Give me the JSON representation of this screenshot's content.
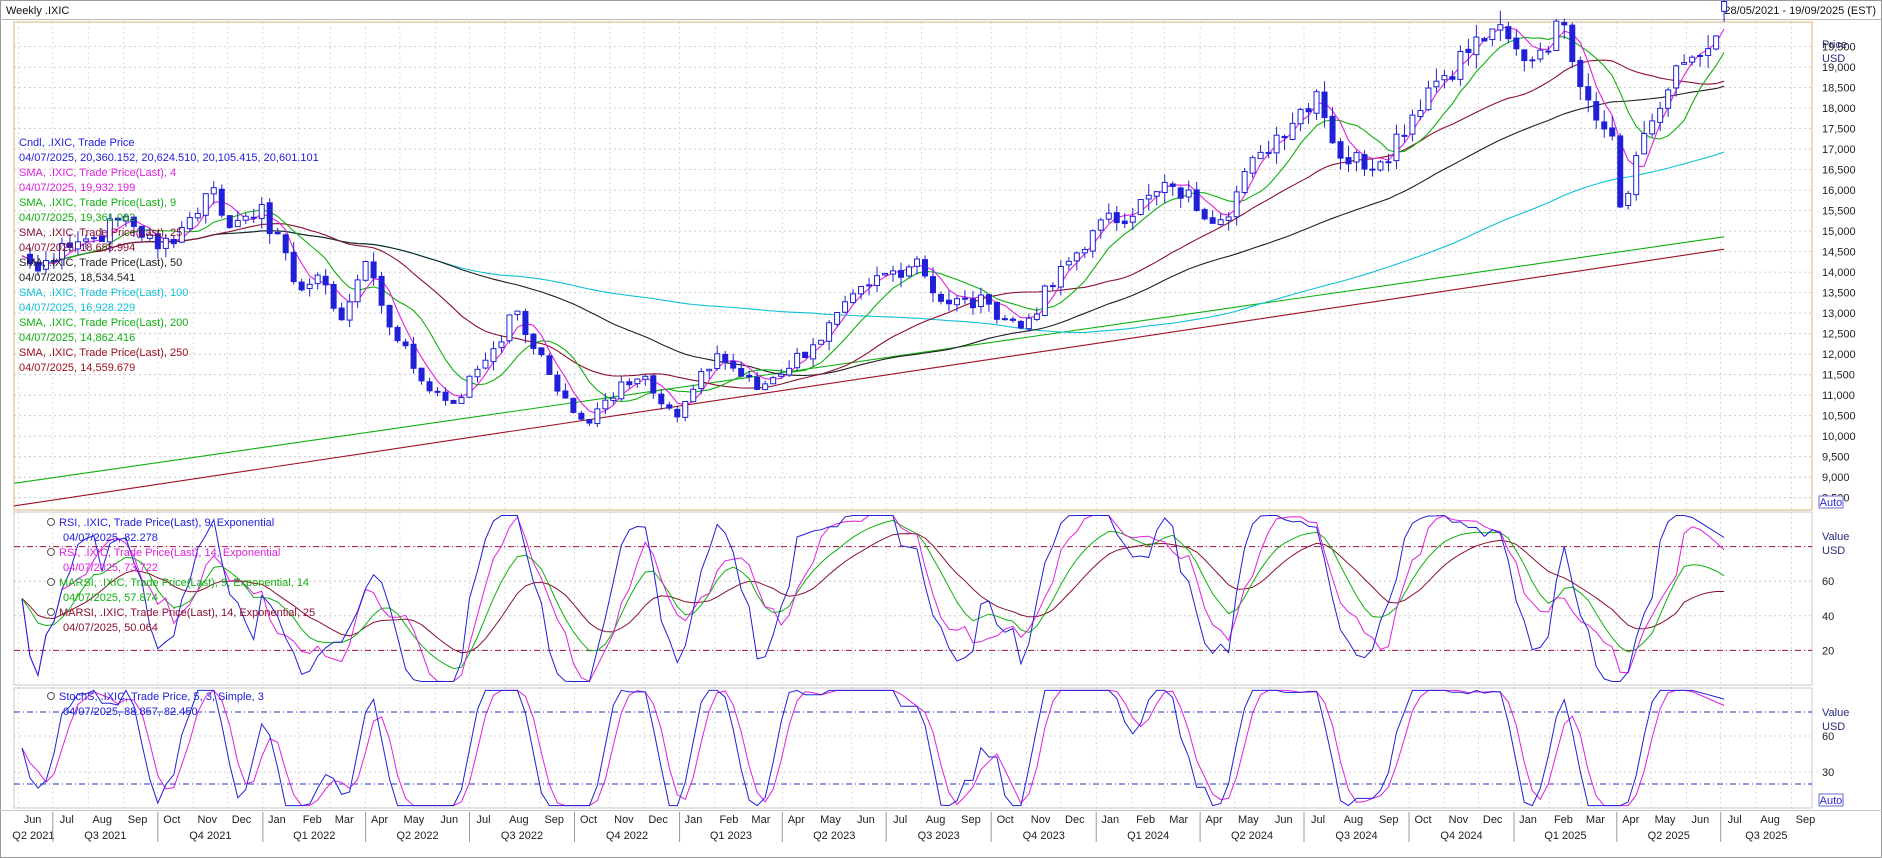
{
  "header": {
    "title": "Weekly .IXIC",
    "date_range": "28/05/2021 - 19/09/2025 (EST)"
  },
  "colors": {
    "candle": "#2020d8",
    "sma4": "#e020e0",
    "sma9": "#10b010",
    "sma25": "#8b1030",
    "sma50": "#202020",
    "sma100": "#10c0d8",
    "sma200": "#10b010",
    "sma250": "#a01020",
    "rsi9": "#2020d8",
    "rsi14": "#e020e0",
    "marsi9": "#10b010",
    "marsi14": "#8b1030",
    "stoch_k": "#2020d8",
    "stoch_d": "#e020e0"
  },
  "price_legend": [
    {
      "name": "Cndl, .IXIC, Trade Price",
      "value": "04/07/2025, 20,360.152, 20,624.510, 20,105.415, 20,601.101",
      "color": "#2020d8"
    },
    {
      "name": "SMA, .IXIC, Trade Price(Last), 4",
      "value": "04/07/2025, 19,932.199",
      "color": "#e020e0"
    },
    {
      "name": "SMA, .IXIC, Trade Price(Last), 9",
      "value": "04/07/2025, 19,361.082",
      "color": "#10b010"
    },
    {
      "name": "SMA, .IXIC, Trade Price(Last), 25",
      "value": "04/07/2025, 18,655.994",
      "color": "#8b1030"
    },
    {
      "name": "SMA, .IXIC, Trade Price(Last), 50",
      "value": "04/07/2025, 18,534.541",
      "color": "#202020"
    },
    {
      "name": "SMA, .IXIC, Trade Price(Last), 100",
      "value": "04/07/2025, 16,928.229",
      "color": "#10c0d8"
    },
    {
      "name": "SMA, .IXIC, Trade Price(Last), 200",
      "value": "04/07/2025, 14,862.416",
      "color": "#10b010"
    },
    {
      "name": "SMA, .IXIC, Trade Price(Last), 250",
      "value": "04/07/2025, 14,559.679",
      "color": "#a01020"
    }
  ],
  "rsi_legend": [
    {
      "name": "RSI, .IXIC, Trade Price(Last), 9, Exponential",
      "value": "04/07/2025, 82.278",
      "color": "#2020d8"
    },
    {
      "name": "RSI, .IXIC, Trade Price(Last), 14, Exponential",
      "value": "04/07/2025, 73.722",
      "color": "#e020e0"
    },
    {
      "name": "MARSI, .IXIC, Trade Price(Last), 9, Exponential, 14",
      "value": "04/07/2025, 57.874",
      "color": "#10b010"
    },
    {
      "name": "MARSI, .IXIC, Trade Price(Last), 14, Exponential, 25",
      "value": "04/07/2025, 50.064",
      "color": "#8b1030"
    }
  ],
  "stoch_legend": [
    {
      "name": "StochS, .IXIC, Trade Price, 5, 3, Simple, 3",
      "value": "04/07/2025, 88.857, 82.450",
      "color": "#2020d8"
    }
  ],
  "axes": {
    "price_unit_top": "Price",
    "price_unit": "USD",
    "price_ticks": [
      "19,500",
      "19,000",
      "18,500",
      "18,000",
      "17,500",
      "17,000",
      "16,500",
      "16,000",
      "15,500",
      "15,000",
      "14,500",
      "14,000",
      "13,500",
      "13,000",
      "12,500",
      "12,000",
      "11,500",
      "11,000",
      "10,500",
      "10,000",
      "9,500",
      "9,000",
      "8,500"
    ],
    "rsi_unit_top": "Value",
    "rsi_unit": "USD",
    "rsi_ticks": [
      "60",
      "40",
      "20"
    ],
    "stoch_unit_top": "Value",
    "stoch_unit": "USD",
    "stoch_ticks": [
      "60",
      "30"
    ],
    "auto_label": "Auto",
    "months": [
      "Jun",
      "Jul",
      "Aug",
      "Sep",
      "Oct",
      "Nov",
      "Dec",
      "Jan",
      "Feb",
      "Mar",
      "Apr",
      "May",
      "Jun",
      "Jul",
      "Aug",
      "Sep",
      "Oct",
      "Nov",
      "Dec",
      "Jan",
      "Feb",
      "Mar",
      "Apr",
      "May",
      "Jun",
      "Jul",
      "Aug",
      "Sep",
      "Oct",
      "Nov",
      "Dec",
      "Jan",
      "Feb",
      "Mar",
      "Apr",
      "May",
      "Jun",
      "Jul",
      "Aug",
      "Sep",
      "Oct",
      "Nov",
      "Dec",
      "Jan",
      "Feb",
      "Mar",
      "Apr",
      "May",
      "Jun",
      "Jul",
      "Aug",
      "Sep"
    ],
    "quarters": [
      "Q2 2021",
      "Q3 2021",
      "Q4 2021",
      "Q1 2022",
      "Q2 2022",
      "Q3 2022",
      "Q4 2022",
      "Q1 2023",
      "Q2 2023",
      "Q3 2023",
      "Q4 2023",
      "Q1 2024",
      "Q2 2024",
      "Q3 2024",
      "Q4 2024",
      "Q1 2025",
      "Q2 2025",
      "Q3 2025"
    ]
  },
  "chart_data": {
    "type": "candlestick",
    "symbol": ".IXIC",
    "interval": "Weekly",
    "x_range": [
      "28/05/2021",
      "19/09/2025"
    ],
    "ylim_price": [
      8200,
      20100
    ],
    "anchor_closes": [
      [
        "2021-06-04",
        14400
      ],
      [
        "2021-06-18",
        14030
      ],
      [
        "2021-07-09",
        14700
      ],
      [
        "2021-08-06",
        14840
      ],
      [
        "2021-09-03",
        15360
      ],
      [
        "2021-10-01",
        14570
      ],
      [
        "2021-10-22",
        15090
      ],
      [
        "2021-11-19",
        16060
      ],
      [
        "2021-12-03",
        15090
      ],
      [
        "2021-12-31",
        15650
      ],
      [
        "2022-01-28",
        13770
      ],
      [
        "2022-02-25",
        13690
      ],
      [
        "2022-03-11",
        12840
      ],
      [
        "2022-04-01",
        14260
      ],
      [
        "2022-04-29",
        12330
      ],
      [
        "2022-05-20",
        11350
      ],
      [
        "2022-06-17",
        10800
      ],
      [
        "2022-07-08",
        11630
      ],
      [
        "2022-08-12",
        13050
      ],
      [
        "2022-08-26",
        12140
      ],
      [
        "2022-09-30",
        10580
      ],
      [
        "2022-10-14",
        10320
      ],
      [
        "2022-11-11",
        11320
      ],
      [
        "2022-12-02",
        11460
      ],
      [
        "2022-12-30",
        10470
      ],
      [
        "2023-02-03",
        12010
      ],
      [
        "2023-03-10",
        11140
      ],
      [
        "2023-04-28",
        12230
      ],
      [
        "2023-06-16",
        13690
      ],
      [
        "2023-07-28",
        14320
      ],
      [
        "2023-08-18",
        13290
      ],
      [
        "2023-09-29",
        13220
      ],
      [
        "2023-10-27",
        12640
      ],
      [
        "2023-12-29",
        15010
      ],
      [
        "2024-03-08",
        16090
      ],
      [
        "2024-04-19",
        15280
      ],
      [
        "2024-05-24",
        16920
      ],
      [
        "2024-07-12",
        18400
      ],
      [
        "2024-08-02",
        16780
      ],
      [
        "2024-09-06",
        16690
      ],
      [
        "2024-10-18",
        18490
      ],
      [
        "2024-12-13",
        19930
      ],
      [
        "2025-01-10",
        19160
      ],
      [
        "2025-02-14",
        20030
      ],
      [
        "2025-03-07",
        18200
      ],
      [
        "2025-03-28",
        17320
      ],
      [
        "2025-04-04",
        15590
      ],
      [
        "2025-04-25",
        17380
      ],
      [
        "2025-05-30",
        19110
      ],
      [
        "2025-06-20",
        19450
      ],
      [
        "2025-07-04",
        20601
      ]
    ],
    "last_candle": {
      "date": "04/07/2025",
      "open": 20360.152,
      "high": 20624.51,
      "low": 20105.415,
      "close": 20601.101
    },
    "sma_last": {
      "4": 19932.199,
      "9": 19361.082,
      "25": 18655.994,
      "50": 18534.541,
      "100": 16928.229,
      "200": 14862.416,
      "250": 14559.679
    },
    "rsi": {
      "ylim": [
        0,
        100
      ],
      "overbought": 80,
      "oversold": 20,
      "rsi9_last": 82.278,
      "rsi14_last": 73.722,
      "marsi9_last": 57.874,
      "marsi14_last": 50.064
    },
    "stoch": {
      "ylim": [
        0,
        100
      ],
      "upper": 80,
      "lower": 20,
      "k_last": 88.857,
      "d_last": 82.45
    }
  }
}
